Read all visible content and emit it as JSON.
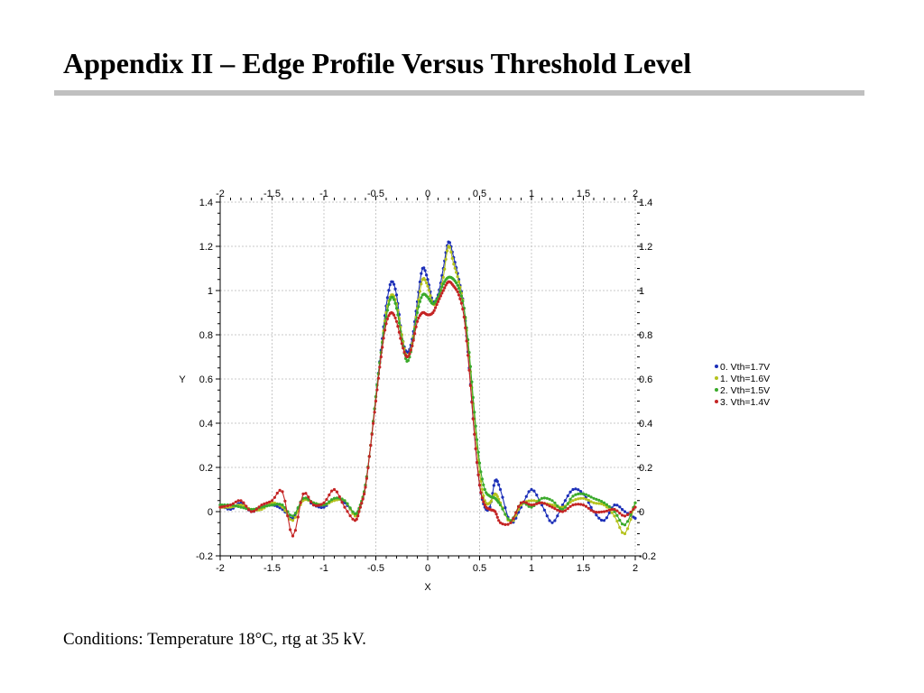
{
  "slide": {
    "title": "Appendix II – Edge Profile Versus Threshold Level",
    "conditions": "Conditions: Temperature 18°C, rtg at 35 kV."
  },
  "chart_data": {
    "type": "line",
    "title": "",
    "xlabel": "X",
    "ylabel": "Y",
    "xlim": [
      -2,
      2
    ],
    "ylim": [
      -0.2,
      1.4
    ],
    "x_ticks": [
      "-2",
      "-1.5",
      "-1",
      "-0.5",
      "0",
      "0.5",
      "1",
      "1.5",
      "2"
    ],
    "y_ticks": [
      "-0.2",
      "0",
      "0.2",
      "0.4",
      "0.6",
      "0.8",
      "1",
      "1.2",
      "1.4"
    ],
    "grid": true,
    "legend_position": "right",
    "series": [
      {
        "name": "0. Vth=1.7V",
        "color": "#1c2fb8",
        "x": [
          -2.0,
          -1.9,
          -1.8,
          -1.7,
          -1.6,
          -1.5,
          -1.4,
          -1.3,
          -1.2,
          -1.1,
          -1.0,
          -0.9,
          -0.8,
          -0.7,
          -0.65,
          -0.6,
          -0.55,
          -0.5,
          -0.45,
          -0.4,
          -0.35,
          -0.3,
          -0.25,
          -0.2,
          -0.15,
          -0.1,
          -0.05,
          0.0,
          0.05,
          0.1,
          0.15,
          0.2,
          0.25,
          0.3,
          0.35,
          0.4,
          0.45,
          0.5,
          0.55,
          0.6,
          0.65,
          0.7,
          0.8,
          0.9,
          1.0,
          1.1,
          1.2,
          1.3,
          1.4,
          1.5,
          1.6,
          1.7,
          1.8,
          1.9,
          2.0
        ],
        "y": [
          0.03,
          0.01,
          0.04,
          0.0,
          0.02,
          0.03,
          0.01,
          -0.03,
          0.06,
          0.03,
          0.02,
          0.06,
          0.04,
          -0.01,
          0.02,
          0.12,
          0.3,
          0.52,
          0.73,
          0.93,
          1.04,
          0.98,
          0.8,
          0.72,
          0.78,
          0.95,
          1.1,
          1.05,
          0.95,
          0.98,
          1.1,
          1.22,
          1.15,
          1.05,
          0.92,
          0.65,
          0.35,
          0.12,
          0.02,
          0.02,
          0.14,
          0.1,
          -0.05,
          0.02,
          0.1,
          0.03,
          -0.05,
          0.03,
          0.1,
          0.08,
          0.0,
          -0.04,
          0.03,
          0.0,
          -0.03
        ]
      },
      {
        "name": "1. Vth=1.6V",
        "color": "#b5c21d",
        "x": [
          -2.0,
          -1.9,
          -1.8,
          -1.7,
          -1.6,
          -1.5,
          -1.4,
          -1.3,
          -1.2,
          -1.1,
          -1.0,
          -0.9,
          -0.8,
          -0.7,
          -0.65,
          -0.6,
          -0.55,
          -0.5,
          -0.45,
          -0.4,
          -0.35,
          -0.3,
          -0.25,
          -0.2,
          -0.15,
          -0.1,
          -0.05,
          0.0,
          0.05,
          0.1,
          0.15,
          0.2,
          0.25,
          0.3,
          0.35,
          0.4,
          0.45,
          0.5,
          0.55,
          0.6,
          0.65,
          0.7,
          0.8,
          0.9,
          1.0,
          1.1,
          1.2,
          1.3,
          1.4,
          1.5,
          1.6,
          1.7,
          1.8,
          1.9,
          2.0
        ],
        "y": [
          0.02,
          0.02,
          0.03,
          0.01,
          0.01,
          0.04,
          0.02,
          -0.04,
          0.05,
          0.04,
          0.03,
          0.05,
          0.05,
          -0.02,
          0.02,
          0.12,
          0.3,
          0.52,
          0.72,
          0.9,
          0.98,
          0.94,
          0.8,
          0.7,
          0.76,
          0.92,
          1.05,
          1.02,
          0.94,
          0.96,
          1.06,
          1.2,
          1.12,
          1.04,
          0.92,
          0.7,
          0.42,
          0.18,
          0.05,
          0.04,
          0.08,
          0.04,
          -0.05,
          0.03,
          0.05,
          0.04,
          0.03,
          0.02,
          0.05,
          0.06,
          0.04,
          0.03,
          -0.02,
          -0.1,
          0.04
        ]
      },
      {
        "name": "2. Vth=1.5V",
        "color": "#3aaa2b",
        "x": [
          -2.0,
          -1.9,
          -1.8,
          -1.7,
          -1.6,
          -1.5,
          -1.4,
          -1.3,
          -1.2,
          -1.1,
          -1.0,
          -0.9,
          -0.8,
          -0.7,
          -0.65,
          -0.6,
          -0.55,
          -0.5,
          -0.45,
          -0.4,
          -0.35,
          -0.3,
          -0.25,
          -0.2,
          -0.15,
          -0.1,
          -0.05,
          0.0,
          0.05,
          0.1,
          0.15,
          0.2,
          0.25,
          0.3,
          0.35,
          0.4,
          0.45,
          0.5,
          0.55,
          0.6,
          0.65,
          0.7,
          0.8,
          0.9,
          1.0,
          1.1,
          1.2,
          1.3,
          1.4,
          1.5,
          1.6,
          1.7,
          1.8,
          1.9,
          2.0
        ],
        "y": [
          0.03,
          0.03,
          0.02,
          0.01,
          0.02,
          0.03,
          0.03,
          -0.02,
          0.06,
          0.04,
          0.03,
          0.06,
          0.05,
          -0.01,
          0.03,
          0.12,
          0.3,
          0.52,
          0.72,
          0.88,
          0.97,
          0.92,
          0.78,
          0.68,
          0.75,
          0.9,
          0.98,
          0.97,
          0.94,
          0.97,
          1.03,
          1.06,
          1.05,
          1.01,
          0.92,
          0.72,
          0.45,
          0.22,
          0.1,
          0.07,
          0.06,
          0.03,
          -0.04,
          0.04,
          0.02,
          0.06,
          0.05,
          0.01,
          0.07,
          0.08,
          0.06,
          0.04,
          0.0,
          -0.06,
          0.04
        ]
      },
      {
        "name": "3. Vth=1.4V",
        "color": "#c42424",
        "x": [
          -2.0,
          -1.9,
          -1.8,
          -1.7,
          -1.6,
          -1.5,
          -1.4,
          -1.3,
          -1.2,
          -1.1,
          -1.0,
          -0.9,
          -0.8,
          -0.7,
          -0.65,
          -0.6,
          -0.55,
          -0.5,
          -0.45,
          -0.4,
          -0.35,
          -0.3,
          -0.25,
          -0.2,
          -0.15,
          -0.1,
          -0.05,
          0.0,
          0.05,
          0.1,
          0.15,
          0.2,
          0.25,
          0.3,
          0.35,
          0.4,
          0.45,
          0.5,
          0.55,
          0.6,
          0.65,
          0.7,
          0.8,
          0.9,
          1.0,
          1.1,
          1.2,
          1.3,
          1.4,
          1.5,
          1.6,
          1.7,
          1.8,
          1.9,
          2.0
        ],
        "y": [
          0.02,
          0.03,
          0.05,
          0.0,
          0.03,
          0.05,
          0.09,
          -0.11,
          0.08,
          0.03,
          0.04,
          0.1,
          0.02,
          -0.04,
          0.02,
          0.11,
          0.3,
          0.5,
          0.7,
          0.85,
          0.9,
          0.86,
          0.76,
          0.7,
          0.75,
          0.86,
          0.9,
          0.89,
          0.9,
          0.95,
          1.0,
          1.04,
          1.02,
          0.98,
          0.88,
          0.64,
          0.35,
          0.12,
          0.03,
          0.01,
          0.0,
          -0.05,
          -0.05,
          0.04,
          0.03,
          0.04,
          0.02,
          0.0,
          0.03,
          0.03,
          0.0,
          0.0,
          0.01,
          -0.02,
          0.02
        ]
      }
    ]
  }
}
